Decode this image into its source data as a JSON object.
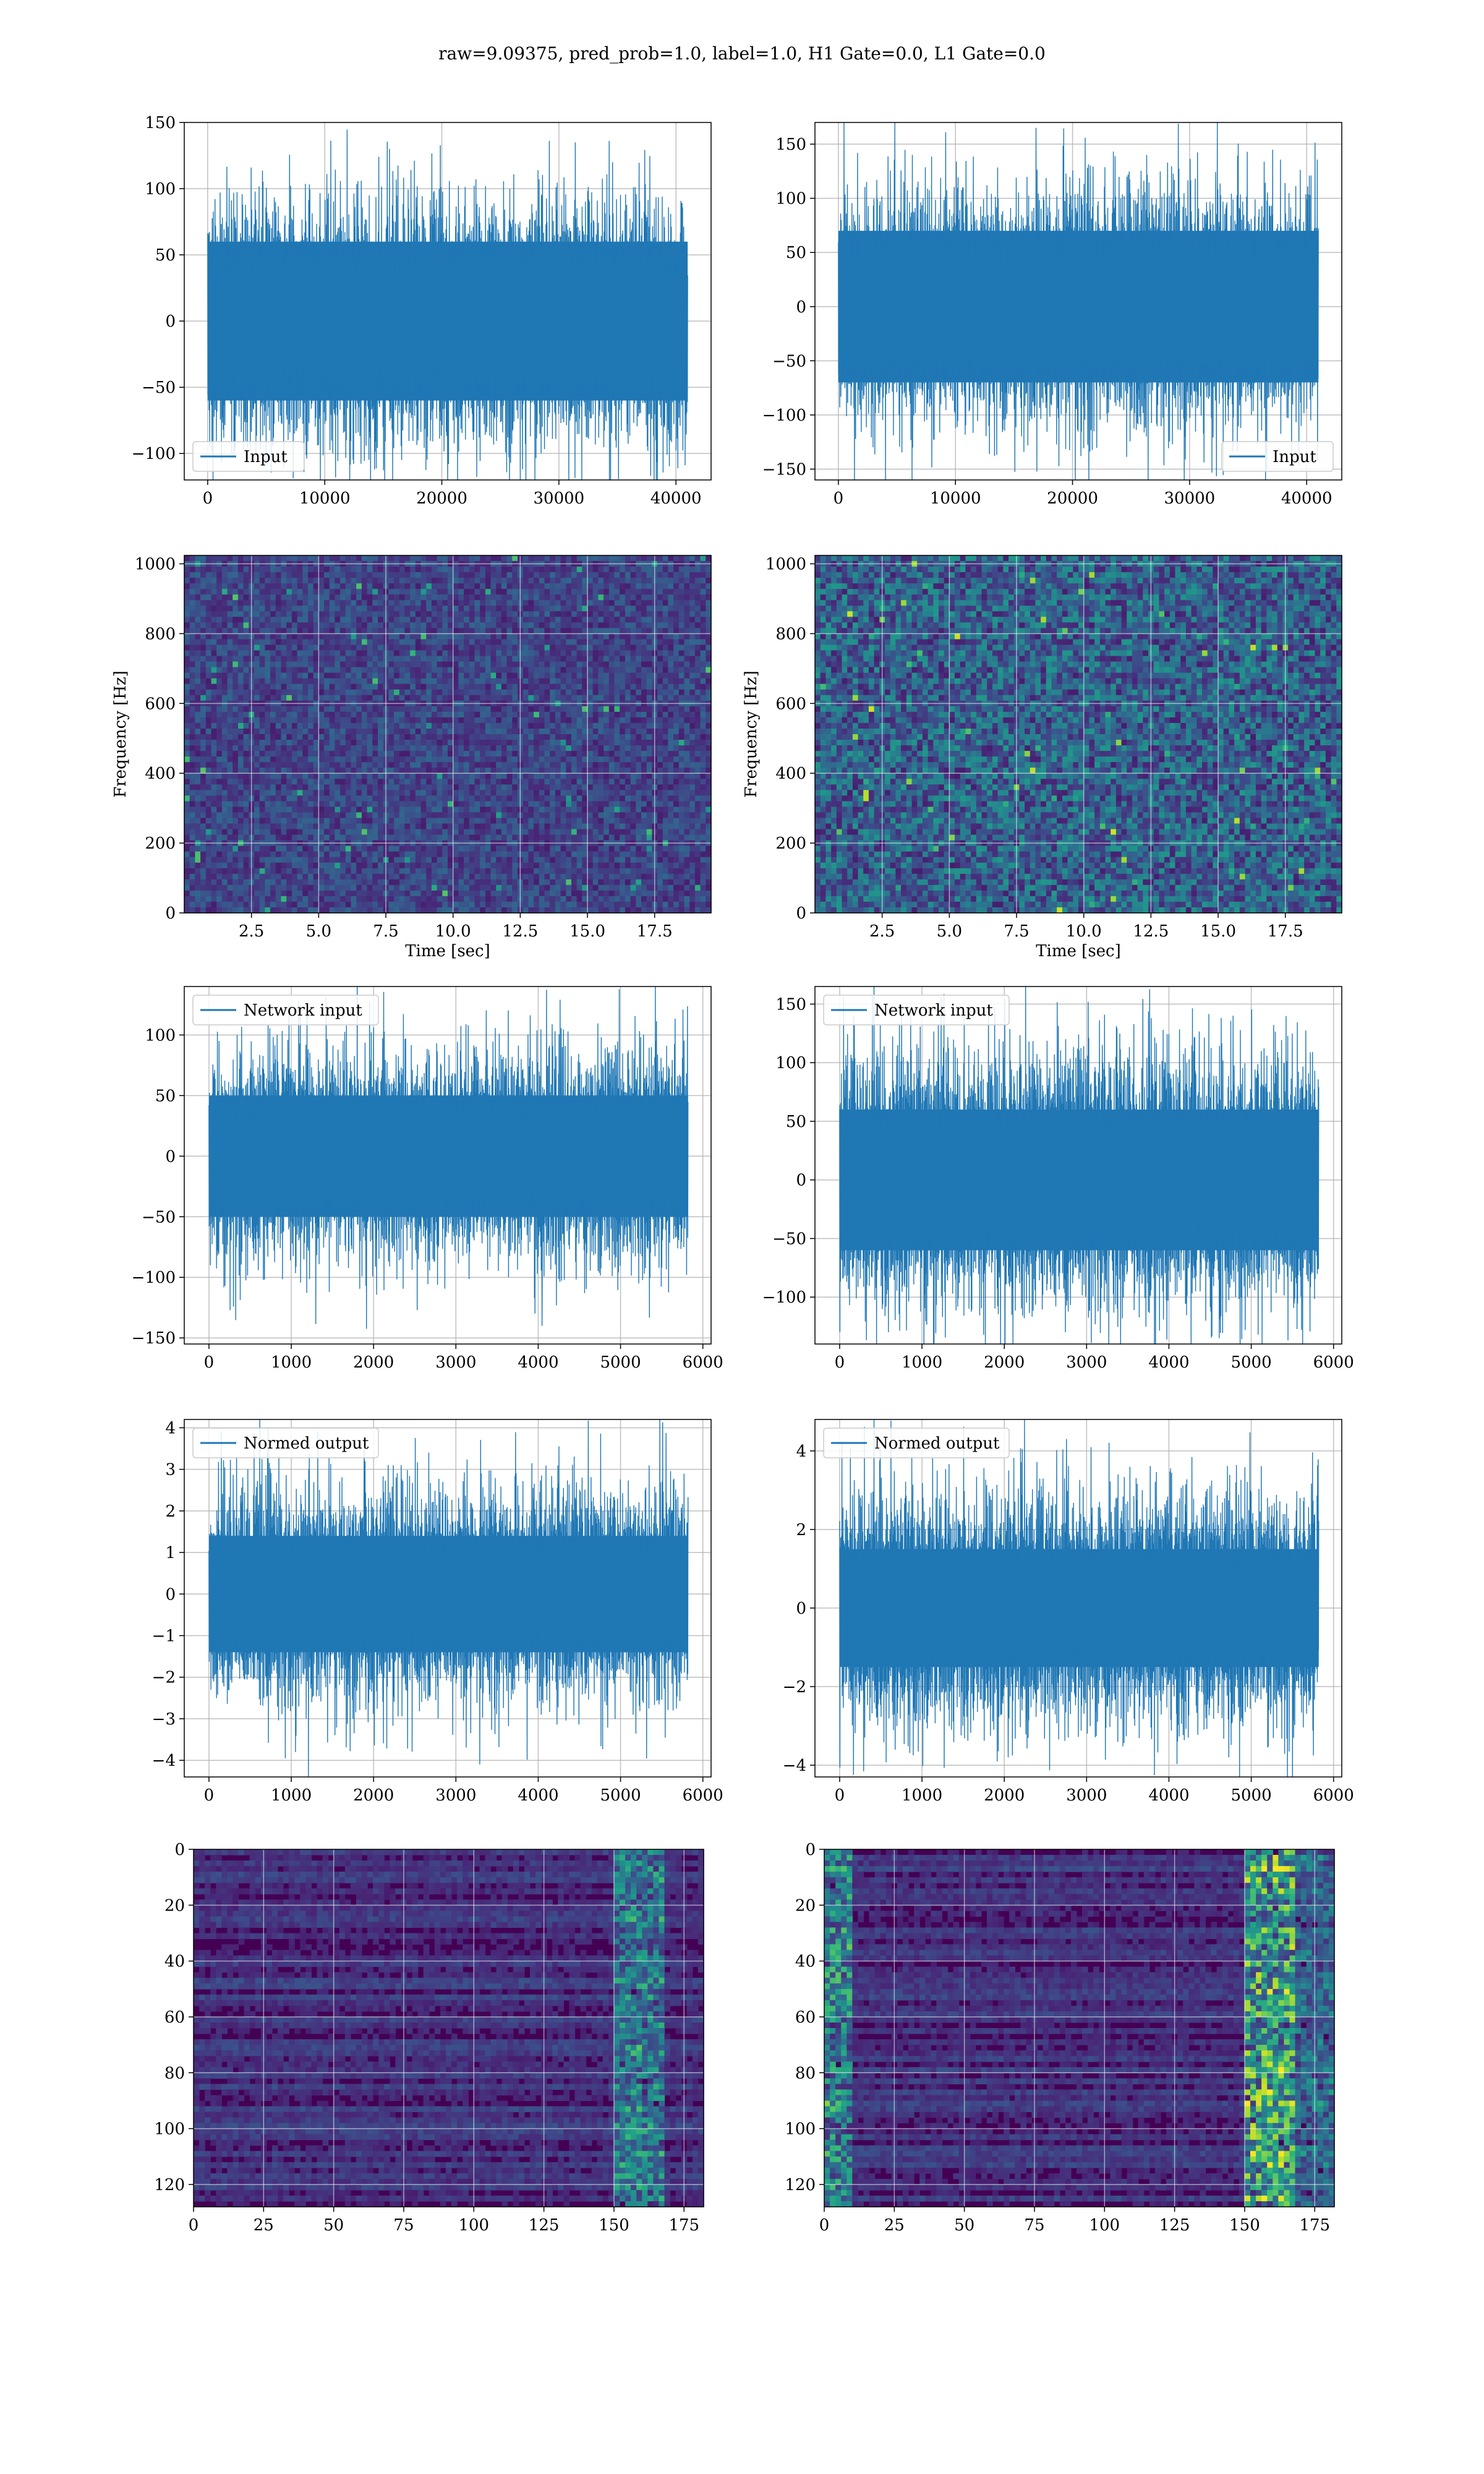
{
  "suptitle": "raw=9.09375, pred_prob=1.0, label=1.0, H1 Gate=0.0, L1 Gate=0.0",
  "colors": {
    "series": "#1f77b4",
    "grid": "#b0b0b0",
    "viridis": [
      "#440154",
      "#482878",
      "#3e4989",
      "#31688e",
      "#26828e",
      "#1f9e89",
      "#35b779",
      "#6ece58",
      "#b5de2b",
      "#fde725"
    ]
  },
  "chart_data": [
    {
      "type": "line",
      "id": "input-h1",
      "legend": "Input",
      "legend_loc": "lower-left",
      "xlim": [
        -2000,
        43000
      ],
      "ylim": [
        -120,
        150
      ],
      "xticks": [
        0,
        10000,
        20000,
        30000,
        40000
      ],
      "xticklabels": [
        "0",
        "10000",
        "20000",
        "30000",
        "40000"
      ],
      "yticks": [
        -100,
        -50,
        0,
        50,
        100,
        150
      ],
      "yticklabels": [
        "−100",
        "−50",
        "0",
        "50",
        "100",
        "150"
      ],
      "x_range": [
        0,
        41000
      ],
      "band": 80,
      "core": 60,
      "spikes": [
        135,
        -125
      ],
      "grid": true
    },
    {
      "type": "line",
      "id": "input-l1",
      "legend": "Input",
      "legend_loc": "lower-right",
      "xlim": [
        -2000,
        43000
      ],
      "ylim": [
        -160,
        170
      ],
      "xticks": [
        0,
        10000,
        20000,
        30000,
        40000
      ],
      "xticklabels": [
        "0",
        "10000",
        "20000",
        "30000",
        "40000"
      ],
      "yticks": [
        -150,
        -100,
        -50,
        0,
        50,
        100,
        150
      ],
      "yticklabels": [
        "−150",
        "−100",
        "−50",
        "0",
        "50",
        "100",
        "150"
      ],
      "x_range": [
        0,
        41000
      ],
      "band": 95,
      "core": 70,
      "spikes": [
        165,
        -150
      ],
      "grid": true
    },
    {
      "type": "heatmap",
      "id": "spec-h1",
      "xlabel": "Time [sec]",
      "ylabel": "Frequency [Hz]",
      "xlim": [
        0,
        19.6
      ],
      "ylim": [
        0,
        1024
      ],
      "xticks": [
        2.5,
        5.0,
        7.5,
        10.0,
        12.5,
        15.0,
        17.5
      ],
      "xticklabels": [
        "2.5",
        "5.0",
        "7.5",
        "10.0",
        "12.5",
        "15.0",
        "17.5"
      ],
      "yticks": [
        0,
        200,
        400,
        600,
        800,
        1000
      ],
      "yticklabels": [
        "0",
        "200",
        "400",
        "600",
        "800",
        "1000"
      ],
      "intensity": 0.25,
      "grid": true
    },
    {
      "type": "heatmap",
      "id": "spec-l1",
      "xlabel": "Time [sec]",
      "ylabel": "Frequency [Hz]",
      "xlim": [
        0,
        19.6
      ],
      "ylim": [
        0,
        1024
      ],
      "xticks": [
        2.5,
        5.0,
        7.5,
        10.0,
        12.5,
        15.0,
        17.5
      ],
      "xticklabels": [
        "2.5",
        "5.0",
        "7.5",
        "10.0",
        "12.5",
        "15.0",
        "17.5"
      ],
      "yticks": [
        0,
        200,
        400,
        600,
        800,
        1000
      ],
      "yticklabels": [
        "0",
        "200",
        "400",
        "600",
        "800",
        "1000"
      ],
      "intensity": 0.45,
      "grid": true
    },
    {
      "type": "line",
      "id": "netin-h1",
      "legend": "Network input",
      "legend_loc": "upper-left",
      "xlim": [
        -300,
        6100
      ],
      "ylim": [
        -155,
        140
      ],
      "xticks": [
        0,
        1000,
        2000,
        3000,
        4000,
        5000,
        6000
      ],
      "xticklabels": [
        "0",
        "1000",
        "2000",
        "3000",
        "4000",
        "5000",
        "6000"
      ],
      "yticks": [
        -150,
        -100,
        -50,
        0,
        50,
        100
      ],
      "yticklabels": [
        "−150",
        "−100",
        "−50",
        "0",
        "50",
        "100"
      ],
      "x_range": [
        0,
        5820
      ],
      "band": 75,
      "core": 50,
      "spikes": [
        128,
        -140
      ],
      "grid": true
    },
    {
      "type": "line",
      "id": "netin-l1",
      "legend": "Network input",
      "legend_loc": "upper-left",
      "xlim": [
        -300,
        6100
      ],
      "ylim": [
        -140,
        165
      ],
      "xticks": [
        0,
        1000,
        2000,
        3000,
        4000,
        5000,
        6000
      ],
      "xticklabels": [
        "0",
        "1000",
        "2000",
        "3000",
        "4000",
        "5000",
        "6000"
      ],
      "yticks": [
        -100,
        -50,
        0,
        50,
        100,
        150
      ],
      "yticklabels": [
        "−100",
        "−50",
        "0",
        "50",
        "100",
        "150"
      ],
      "x_range": [
        0,
        5820
      ],
      "band": 95,
      "core": 60,
      "spikes": [
        155,
        -130
      ],
      "grid": true
    },
    {
      "type": "line",
      "id": "normed-h1",
      "legend": "Normed output",
      "legend_loc": "upper-left",
      "xlim": [
        -300,
        6100
      ],
      "ylim": [
        -4.4,
        4.2
      ],
      "xticks": [
        0,
        1000,
        2000,
        3000,
        4000,
        5000,
        6000
      ],
      "xticklabels": [
        "0",
        "1000",
        "2000",
        "3000",
        "4000",
        "5000",
        "6000"
      ],
      "yticks": [
        -4,
        -3,
        -2,
        -1,
        0,
        1,
        2,
        3,
        4
      ],
      "yticklabels": [
        "−4",
        "−3",
        "−2",
        "−1",
        "0",
        "1",
        "2",
        "3",
        "4"
      ],
      "x_range": [
        0,
        5820
      ],
      "band": 2.3,
      "core": 1.4,
      "spikes": [
        3.8,
        -4.1
      ],
      "grid": true
    },
    {
      "type": "line",
      "id": "normed-l1",
      "legend": "Normed output",
      "legend_loc": "upper-left",
      "xlim": [
        -300,
        6100
      ],
      "ylim": [
        -4.3,
        4.8
      ],
      "xticks": [
        0,
        1000,
        2000,
        3000,
        4000,
        5000,
        6000
      ],
      "xticklabels": [
        "0",
        "1000",
        "2000",
        "3000",
        "4000",
        "5000",
        "6000"
      ],
      "yticks": [
        -4,
        -2,
        0,
        2,
        4
      ],
      "yticklabels": [
        "−4",
        "−2",
        "0",
        "2",
        "4"
      ],
      "x_range": [
        0,
        5820
      ],
      "band": 2.6,
      "core": 1.5,
      "spikes": [
        4.3,
        -3.8
      ],
      "grid": true
    },
    {
      "type": "heatmap",
      "id": "feat-h1",
      "inverted_y": true,
      "xlim": [
        0,
        182
      ],
      "ylim": [
        0,
        128
      ],
      "xticks": [
        0,
        25,
        50,
        75,
        100,
        125,
        150,
        175
      ],
      "xticklabels": [
        "0",
        "25",
        "50",
        "75",
        "100",
        "125",
        "150",
        "175"
      ],
      "yticks": [
        0,
        20,
        40,
        60,
        80,
        100,
        120
      ],
      "yticklabels": [
        "0",
        "20",
        "40",
        "60",
        "80",
        "100",
        "120"
      ],
      "intensity": 0.3,
      "grid": true
    },
    {
      "type": "heatmap",
      "id": "feat-l1",
      "inverted_y": true,
      "xlim": [
        0,
        182
      ],
      "ylim": [
        0,
        128
      ],
      "xticks": [
        0,
        25,
        50,
        75,
        100,
        125,
        150,
        175
      ],
      "xticklabels": [
        "0",
        "25",
        "50",
        "75",
        "100",
        "125",
        "150",
        "175"
      ],
      "yticks": [
        0,
        20,
        40,
        60,
        80,
        100,
        120
      ],
      "yticklabels": [
        "0",
        "20",
        "40",
        "60",
        "80",
        "100",
        "120"
      ],
      "intensity": 0.5,
      "grid": true
    }
  ]
}
